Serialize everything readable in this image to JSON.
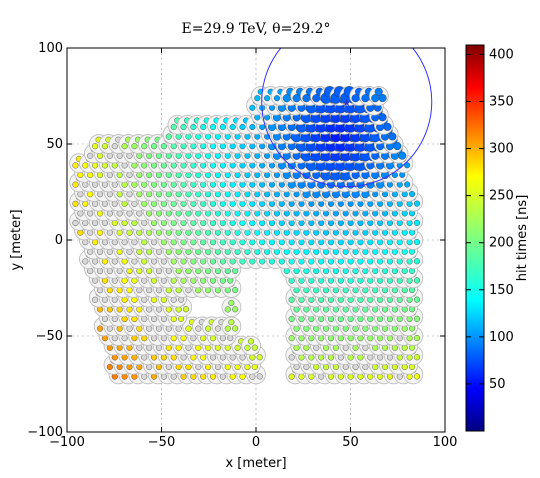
{
  "chart_data": {
    "type": "scatter",
    "title": "E=29.9 TeV, θ=29.2°",
    "xlabel": "x [meter]",
    "ylabel": "y [meter]",
    "xlim": [
      -100,
      100
    ],
    "ylim": [
      -100,
      100
    ],
    "xticks": [
      "−100",
      "−50",
      "0",
      "50",
      "100"
    ],
    "yticks": [
      "−100",
      "−50",
      "0",
      "50",
      "100"
    ],
    "grid": true,
    "colorbar": {
      "label": "hit times [ns]",
      "range": [
        0,
        410
      ],
      "ticks": [
        "50",
        "100",
        "150",
        "200",
        "250",
        "300",
        "350",
        "400"
      ],
      "colormap": "jet"
    },
    "shower_core": {
      "x": 48,
      "y": 72
    },
    "core_circle_radius": 45,
    "series": [
      {
        "name": "detector stations"
      },
      {
        "name": "hit detectors (time-coloured)"
      }
    ]
  }
}
